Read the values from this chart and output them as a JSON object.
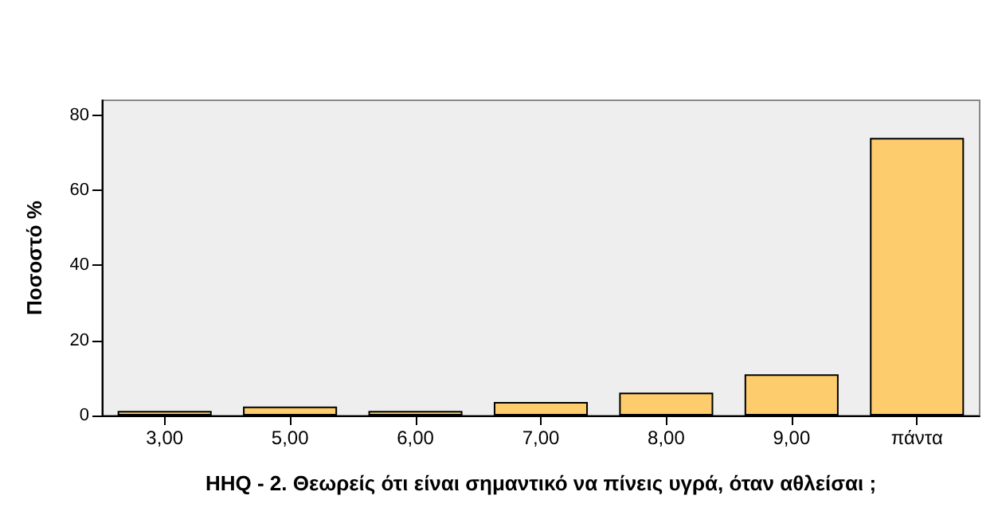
{
  "chart_data": {
    "type": "bar",
    "xlabel": "HHQ - 2. Θεωρείς ότι είναι σημαντικό να πίνεις υγρά, όταν αθλείσαι ;",
    "ylabel": "Ποσοστό %",
    "categories": [
      "3,00",
      "5,00",
      "6,00",
      "7,00",
      "8,00",
      "9,00",
      "πάντα"
    ],
    "values": [
      1.2,
      2.4,
      1.2,
      3.6,
      6.1,
      11.0,
      74.0
    ],
    "color": "#fdcc6c",
    "ylim": [
      0,
      84
    ],
    "yticks": [
      0,
      20,
      40,
      60,
      80
    ],
    "grid": false
  }
}
